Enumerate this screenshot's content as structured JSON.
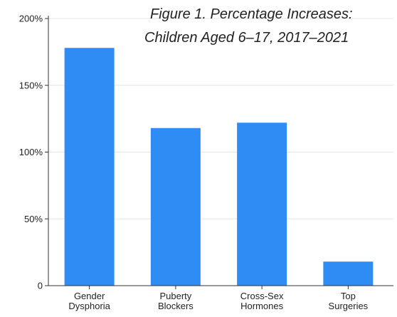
{
  "chart_data": {
    "type": "bar",
    "title_lines": [
      "Figure 1. Percentage Increases:",
      "Children Aged 6–17, 2017–2021"
    ],
    "categories": [
      [
        "Gender",
        "Dysphoria"
      ],
      [
        "Puberty",
        "Blockers"
      ],
      [
        "Cross-Sex",
        "Hormones"
      ],
      [
        "Top",
        "Surgeries"
      ]
    ],
    "values": [
      178,
      118,
      122,
      18
    ],
    "unit": "%",
    "ylim": [
      0,
      200
    ],
    "yticks": [
      0,
      50,
      100,
      150,
      200
    ],
    "ytick_labels": [
      "0",
      "50%",
      "100%",
      "150%",
      "200%"
    ],
    "grid": true,
    "bar_color": "#2f8cf5",
    "grid_color": "#e6e6e6"
  }
}
